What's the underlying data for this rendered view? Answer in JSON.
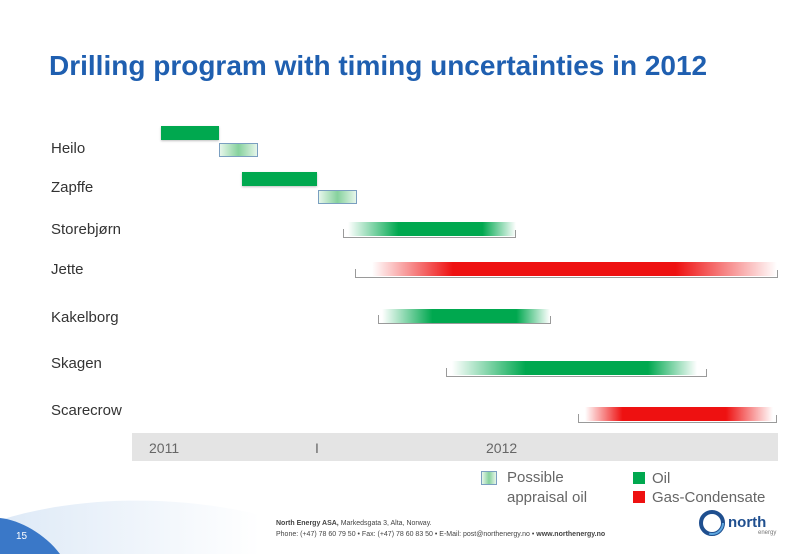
{
  "slide": {
    "title": "Drilling program with timing uncertainties in 2012",
    "page_number": "15"
  },
  "rows": [
    {
      "label": "Heilo",
      "type": "Oil"
    },
    {
      "label": "Zapffe",
      "type": "Oil"
    },
    {
      "label": "Storebjørn",
      "type": "Oil"
    },
    {
      "label": "Jette",
      "type": "Gas-Condensate"
    },
    {
      "label": "Kakelborg",
      "type": "Oil"
    },
    {
      "label": "Skagen",
      "type": "Oil"
    },
    {
      "label": "Scarecrow",
      "type": "Gas-Condensate"
    }
  ],
  "timeline": {
    "year_start": "2011",
    "separator": "I",
    "year_next": "2012"
  },
  "legend": {
    "appraisal_line1": "Possible",
    "appraisal_line2": "appraisal oil",
    "oil": "Oil",
    "gas": "Gas-Condensate",
    "colors": {
      "oil": "#00a84f",
      "gas": "#ee1111",
      "appraisal": "#86d19d"
    }
  },
  "footer": {
    "company": "North Energy ASA,",
    "address": "Markedsgata 3, Alta, Norway.",
    "phone_line": "Phone: (+47) 78 60 79 50  • Fax: (+47) 78 60 83 50  • E-Mail: post@northenergy.no  •",
    "website": "www.northenergy.no",
    "logo": "north",
    "logo_sub": "energy",
    "logo_icon": "ring-logo-icon"
  }
}
